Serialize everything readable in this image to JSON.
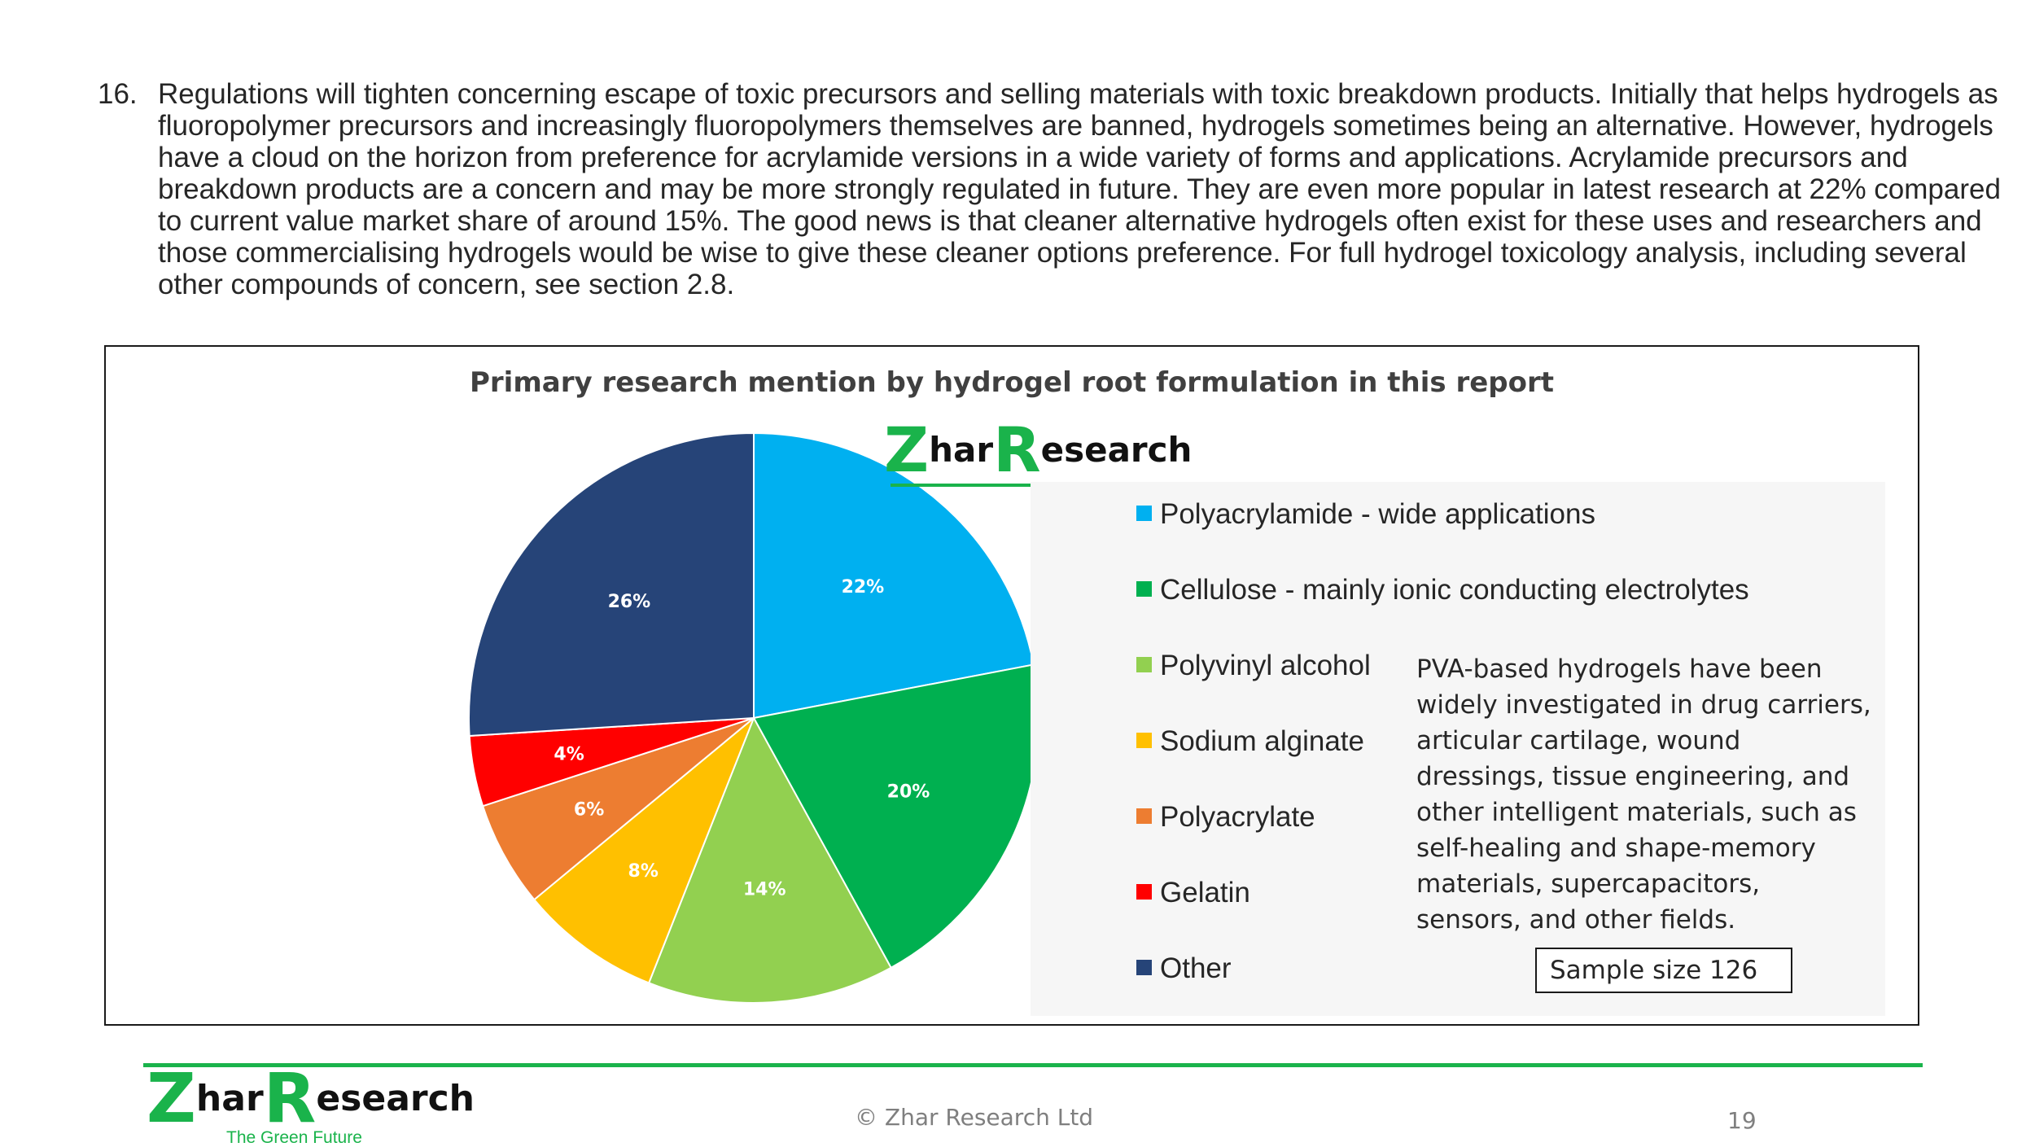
{
  "paragraph": {
    "number": "16.",
    "text": "Regulations will tighten concerning escape of toxic precursors and selling materials with toxic breakdown products. Initially that helps hydrogels as fluoropolymer precursors and increasingly fluoropolymers themselves are banned, hydrogels sometimes being an alternative. However, hydrogels have a cloud on the horizon from preference for acrylamide versions in a wide variety of forms and applications. Acrylamide precursors and breakdown products are a concern and may be more strongly regulated in future. They are even more popular in latest research at 22% compared to current value market share of around 15%. The good news is that cleaner alternative hydrogels often exist for these uses and researchers and those commercialising hydrogels would be wise to give these cleaner options preference. For full hydrogel toxicology analysis, including several other compounds of concern, see section 2.8."
  },
  "chart_data": {
    "type": "pie",
    "title": "Primary research mention by hydrogel root formulation in this report",
    "slices": [
      {
        "name": "Polyacrylamide - wide applications",
        "value": 22,
        "label": "22%",
        "color": "#00b0f0"
      },
      {
        "name": "Cellulose - mainly ionic conducting electrolytes",
        "value": 20,
        "label": "20%",
        "color": "#00b050"
      },
      {
        "name": "Polyvinyl alcohol",
        "value": 14,
        "label": "14%",
        "color": "#92d050"
      },
      {
        "name": "Sodium alginate",
        "value": 8,
        "label": "8%",
        "color": "#ffc000"
      },
      {
        "name": "Polyacrylate",
        "value": 6,
        "label": "6%",
        "color": "#ed7d31"
      },
      {
        "name": "Gelatin",
        "value": 4,
        "label": "4%",
        "color": "#ff0000"
      },
      {
        "name": "Other",
        "value": 26,
        "label": "26%",
        "color": "#264478"
      }
    ],
    "legend_position": "right",
    "annotation": "PVA-based hydrogels have been widely investigated in drug carriers, articular cartilage, wound dressings, tissue engineering, and other intelligent materials, such as self-healing and shape-memory materials, supercapacitors, sensors, and other fields.",
    "sample_size": "Sample size 126"
  },
  "logo": {
    "z": "Z",
    "har": "har",
    "r": "R",
    "esearch": "esearch",
    "tagline": "The Green Future"
  },
  "footer": {
    "copyright": "© Zhar Research Ltd",
    "page_number": "19"
  },
  "colors": {
    "brand_green": "#1ab34b"
  }
}
